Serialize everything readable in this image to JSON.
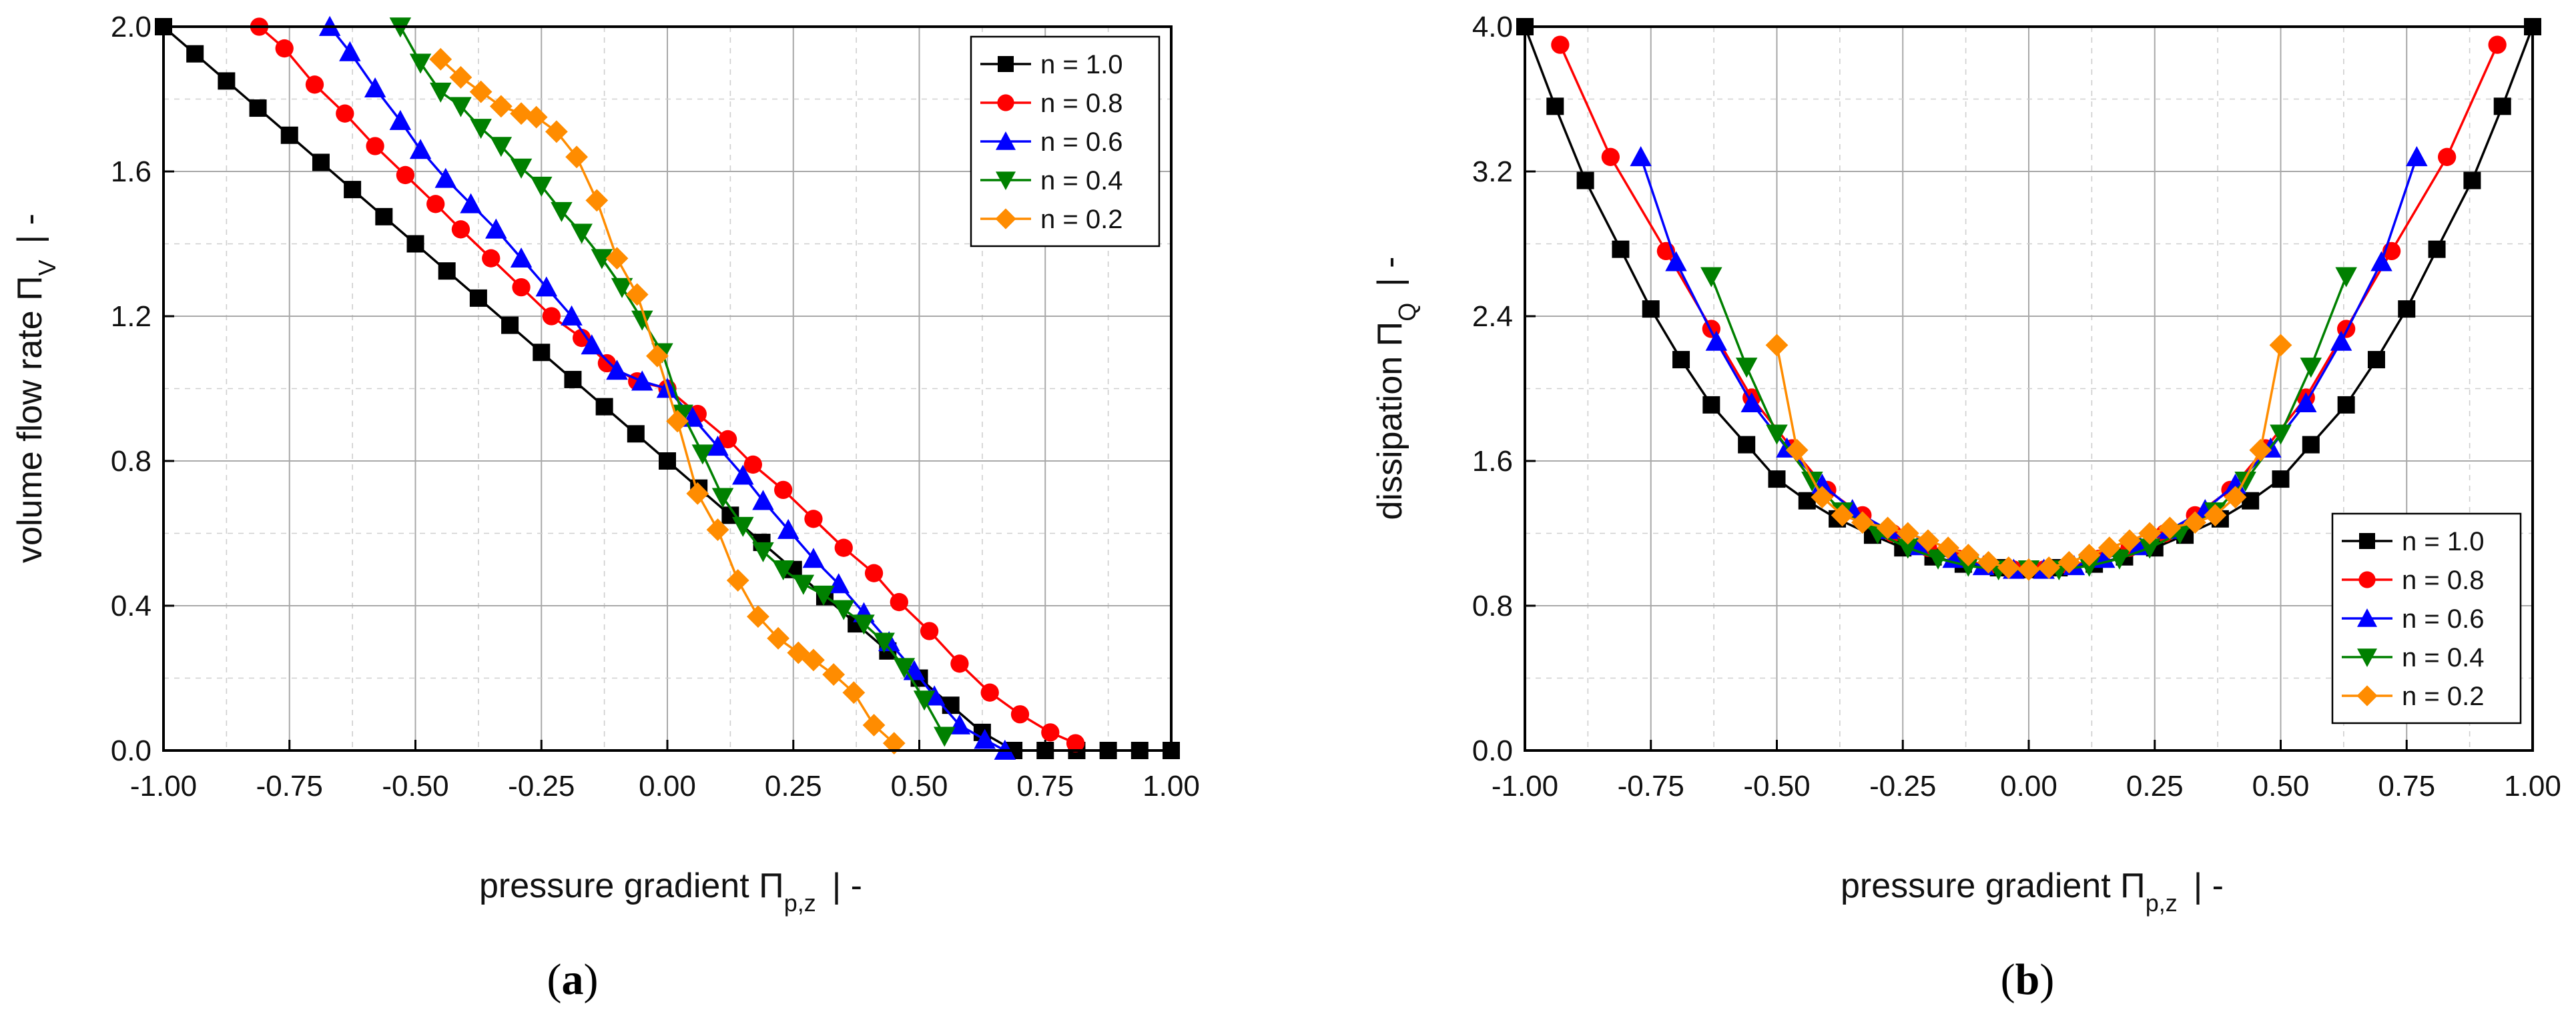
{
  "chart_data": [
    {
      "panel_label": "a",
      "type": "line",
      "xlabel": "pressure gradient Π",
      "xlabel_sub": "p,z",
      "xlabel_units": "|  -",
      "ylabel": "volume flow rate Π",
      "ylabel_sub": "V",
      "ylabel_units": "|  -",
      "xlim": [
        -1.0,
        1.0
      ],
      "ylim": [
        0.0,
        2.0
      ],
      "xticks": [
        "-1.00",
        "-0.75",
        "-0.50",
        "-0.25",
        "0.00",
        "0.25",
        "0.50",
        "0.75",
        "1.00"
      ],
      "yticks": [
        "0.0",
        "0.4",
        "0.8",
        "1.2",
        "1.6",
        "2.0"
      ],
      "legend_position": "top-right",
      "series": [
        {
          "name": "n = 1.0",
          "color": "#000000",
          "marker": "square",
          "x": [
            -1.0,
            -0.9375,
            -0.875,
            -0.8125,
            -0.75,
            -0.6875,
            -0.625,
            -0.5625,
            -0.5,
            -0.4375,
            -0.375,
            -0.3125,
            -0.25,
            -0.1875,
            -0.125,
            -0.0625,
            0.0,
            0.0625,
            0.125,
            0.1875,
            0.25,
            0.3125,
            0.375,
            0.4375,
            0.5,
            0.5625,
            0.625,
            0.6875,
            0.75,
            0.8125,
            0.875,
            0.9375,
            1.0
          ],
          "y": [
            2.0,
            1.925,
            1.85,
            1.775,
            1.7,
            1.625,
            1.55,
            1.475,
            1.4,
            1.325,
            1.25,
            1.175,
            1.1,
            1.025,
            0.95,
            0.875,
            0.8,
            0.725,
            0.65,
            0.575,
            0.5,
            0.425,
            0.35,
            0.275,
            0.2,
            0.125,
            0.05,
            0.0,
            0.0,
            0.0,
            0.0,
            0.0,
            0.0
          ]
        },
        {
          "name": "n = 0.8",
          "color": "#ff0000",
          "marker": "circle",
          "x": [
            -0.81,
            -0.76,
            -0.7,
            -0.64,
            -0.58,
            -0.52,
            -0.46,
            -0.41,
            -0.35,
            -0.29,
            -0.23,
            -0.17,
            -0.12,
            -0.06,
            0.0,
            0.06,
            0.12,
            0.17,
            0.23,
            0.29,
            0.35,
            0.41,
            0.46,
            0.52,
            0.58,
            0.64,
            0.7,
            0.76,
            0.81
          ],
          "y": [
            2.0,
            1.94,
            1.84,
            1.76,
            1.67,
            1.59,
            1.51,
            1.44,
            1.36,
            1.28,
            1.2,
            1.14,
            1.07,
            1.02,
            1.0,
            0.93,
            0.86,
            0.79,
            0.72,
            0.64,
            0.56,
            0.49,
            0.41,
            0.33,
            0.24,
            0.16,
            0.1,
            0.05,
            0.02
          ]
        },
        {
          "name": "n = 0.6",
          "color": "#0000ff",
          "marker": "triangle-up",
          "x": [
            -0.67,
            -0.63,
            -0.58,
            -0.53,
            -0.49,
            -0.44,
            -0.39,
            -0.34,
            -0.29,
            -0.24,
            -0.19,
            -0.15,
            -0.1,
            -0.05,
            0.0,
            0.05,
            0.1,
            0.15,
            0.19,
            0.24,
            0.29,
            0.34,
            0.39,
            0.44,
            0.49,
            0.53,
            0.58,
            0.63,
            0.67
          ],
          "y": [
            2.0,
            1.93,
            1.83,
            1.74,
            1.66,
            1.58,
            1.51,
            1.44,
            1.36,
            1.28,
            1.2,
            1.12,
            1.05,
            1.02,
            1.0,
            0.92,
            0.84,
            0.76,
            0.69,
            0.61,
            0.53,
            0.46,
            0.38,
            0.3,
            0.22,
            0.15,
            0.07,
            0.03,
            0.0
          ]
        },
        {
          "name": "n = 0.4",
          "color": "#008000",
          "marker": "triangle-down",
          "x": [
            -0.53,
            -0.49,
            -0.45,
            -0.41,
            -0.37,
            -0.33,
            -0.29,
            -0.25,
            -0.21,
            -0.17,
            -0.13,
            -0.09,
            -0.05,
            -0.01,
            0.03,
            0.07,
            0.11,
            0.15,
            0.19,
            0.23,
            0.27,
            0.31,
            0.35,
            0.39,
            0.43,
            0.47,
            0.51,
            0.55
          ],
          "y": [
            2.0,
            1.9,
            1.82,
            1.78,
            1.72,
            1.67,
            1.61,
            1.56,
            1.49,
            1.43,
            1.36,
            1.28,
            1.19,
            1.1,
            0.93,
            0.82,
            0.7,
            0.62,
            0.55,
            0.5,
            0.46,
            0.43,
            0.39,
            0.35,
            0.3,
            0.23,
            0.14,
            0.04
          ]
        },
        {
          "name": "n = 0.2",
          "color": "#ff8c00",
          "marker": "diamond",
          "x": [
            -0.45,
            -0.41,
            -0.37,
            -0.33,
            -0.29,
            -0.26,
            -0.22,
            -0.18,
            -0.14,
            -0.1,
            -0.06,
            -0.02,
            0.02,
            0.06,
            0.1,
            0.14,
            0.18,
            0.22,
            0.26,
            0.29,
            0.33,
            0.37,
            0.41,
            0.45
          ],
          "y": [
            1.91,
            1.86,
            1.82,
            1.78,
            1.76,
            1.75,
            1.71,
            1.64,
            1.52,
            1.36,
            1.26,
            1.09,
            0.91,
            0.71,
            0.61,
            0.47,
            0.37,
            0.31,
            0.27,
            0.25,
            0.21,
            0.16,
            0.07,
            0.02
          ]
        }
      ]
    },
    {
      "panel_label": "b",
      "type": "line",
      "xlabel": "pressure gradient Π",
      "xlabel_sub": "p,z",
      "xlabel_units": "|  -",
      "ylabel": "dissipation Π",
      "ylabel_sub": "Q",
      "ylabel_units": "|  -",
      "xlim": [
        -1.0,
        1.0
      ],
      "ylim": [
        0.0,
        4.0
      ],
      "xticks": [
        "-1.00",
        "-0.75",
        "-0.50",
        "-0.25",
        "0.00",
        "0.25",
        "0.50",
        "0.75",
        "1.00"
      ],
      "yticks": [
        "0.0",
        "0.8",
        "1.6",
        "2.4",
        "3.2",
        "4.0"
      ],
      "legend_position": "bottom-right",
      "series": [
        {
          "name": "n = 1.0",
          "color": "#000000",
          "marker": "square",
          "x": [
            -1.0,
            -0.94,
            -0.88,
            -0.81,
            -0.75,
            -0.69,
            -0.63,
            -0.56,
            -0.5,
            -0.44,
            -0.38,
            -0.31,
            -0.25,
            -0.19,
            -0.13,
            -0.06,
            0.0,
            0.06,
            0.13,
            0.19,
            0.25,
            0.31,
            0.38,
            0.44,
            0.5,
            0.56,
            0.63,
            0.69,
            0.75,
            0.81,
            0.88,
            0.94,
            1.0
          ],
          "y": [
            4.0,
            3.56,
            3.15,
            2.77,
            2.44,
            2.16,
            1.91,
            1.69,
            1.5,
            1.38,
            1.28,
            1.19,
            1.12,
            1.07,
            1.03,
            1.01,
            1.0,
            1.01,
            1.03,
            1.07,
            1.12,
            1.19,
            1.28,
            1.38,
            1.5,
            1.69,
            1.91,
            2.16,
            2.44,
            2.77,
            3.15,
            3.56,
            4.0
          ]
        },
        {
          "name": "n = 0.8",
          "color": "#ff0000",
          "marker": "circle",
          "x": [
            -0.93,
            -0.83,
            -0.72,
            -0.63,
            -0.55,
            -0.47,
            -0.4,
            -0.33,
            -0.27,
            -0.2,
            -0.14,
            -0.08,
            -0.03,
            0.03,
            0.08,
            0.14,
            0.2,
            0.27,
            0.33,
            0.4,
            0.47,
            0.55,
            0.63,
            0.72,
            0.83,
            0.93
          ],
          "y": [
            3.9,
            3.28,
            2.76,
            2.33,
            1.95,
            1.67,
            1.44,
            1.3,
            1.2,
            1.12,
            1.06,
            1.02,
            1.0,
            1.0,
            1.02,
            1.06,
            1.12,
            1.2,
            1.3,
            1.44,
            1.67,
            1.95,
            2.33,
            2.76,
            3.28,
            3.9
          ]
        },
        {
          "name": "n = 0.6",
          "color": "#0000ff",
          "marker": "triangle-up",
          "x": [
            -0.77,
            -0.7,
            -0.62,
            -0.55,
            -0.48,
            -0.41,
            -0.35,
            -0.28,
            -0.22,
            -0.15,
            -0.09,
            -0.03,
            0.03,
            0.09,
            0.15,
            0.22,
            0.28,
            0.35,
            0.41,
            0.48,
            0.55,
            0.62,
            0.7,
            0.77
          ],
          "y": [
            3.28,
            2.7,
            2.26,
            1.92,
            1.67,
            1.47,
            1.33,
            1.22,
            1.13,
            1.06,
            1.02,
            1.0,
            1.0,
            1.02,
            1.06,
            1.13,
            1.22,
            1.33,
            1.47,
            1.67,
            1.92,
            2.26,
            2.7,
            3.28
          ]
        },
        {
          "name": "n = 0.4",
          "color": "#008000",
          "marker": "triangle-down",
          "x": [
            -0.63,
            -0.56,
            -0.5,
            -0.43,
            -0.37,
            -0.3,
            -0.24,
            -0.18,
            -0.12,
            -0.06,
            0.0,
            0.06,
            0.12,
            0.18,
            0.24,
            0.3,
            0.37,
            0.43,
            0.5,
            0.56,
            0.63
          ],
          "y": [
            2.62,
            2.12,
            1.75,
            1.49,
            1.32,
            1.2,
            1.12,
            1.06,
            1.02,
            1.0,
            1.0,
            1.0,
            1.02,
            1.06,
            1.12,
            1.2,
            1.32,
            1.49,
            1.75,
            2.12,
            2.62
          ]
        },
        {
          "name": "n = 0.2",
          "color": "#ff8c00",
          "marker": "diamond",
          "x": [
            -0.5,
            -0.46,
            -0.41,
            -0.37,
            -0.33,
            -0.28,
            -0.24,
            -0.2,
            -0.16,
            -0.12,
            -0.08,
            -0.04,
            0.0,
            0.04,
            0.08,
            0.12,
            0.16,
            0.2,
            0.24,
            0.28,
            0.33,
            0.37,
            0.41,
            0.46,
            0.5
          ],
          "y": [
            2.24,
            1.66,
            1.4,
            1.3,
            1.26,
            1.23,
            1.2,
            1.16,
            1.12,
            1.08,
            1.04,
            1.01,
            1.0,
            1.01,
            1.04,
            1.08,
            1.12,
            1.16,
            1.2,
            1.23,
            1.26,
            1.3,
            1.4,
            1.66,
            2.24
          ]
        }
      ]
    }
  ]
}
